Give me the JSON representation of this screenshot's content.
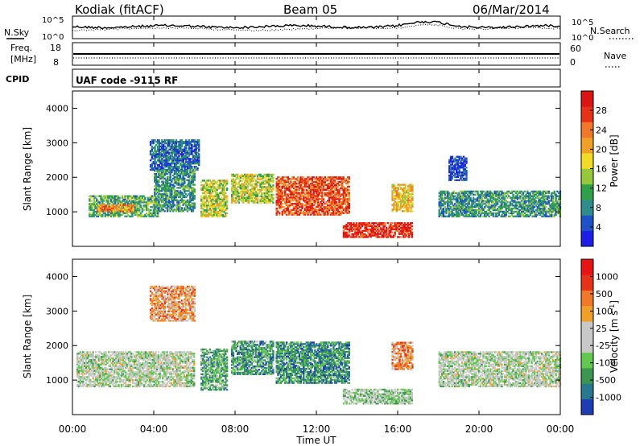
{
  "header": {
    "station": "Kodiak (fitACF)",
    "beam": "Beam 05",
    "date": "06/Mar/2014",
    "nsky_label": "N.Sky",
    "nsearch_label": "N.Search",
    "freq_label": "Freq.",
    "freq_unit": "[MHz]",
    "nave_label": "Nave",
    "cpid_label": "CPID",
    "cpid_text": "UAF code -9115 RF",
    "noise_ticks_left": [
      "10^5",
      "10^0"
    ],
    "noise_ticks_right": [
      "10^5",
      "10^0"
    ],
    "freq_ticks": [
      "18",
      "8"
    ],
    "nave_ticks": [
      "60",
      "0"
    ]
  },
  "chart_data": [
    {
      "type": "heatmap",
      "name": "power",
      "ylabel": "Slant Range [km]",
      "ylim": [
        0,
        4500
      ],
      "yticks": [
        "1000",
        "2000",
        "3000",
        "4000"
      ],
      "colorbar_label": "Power [dB]",
      "colorbar_ticks": [
        "28",
        "24",
        "20",
        "16",
        "12",
        "8",
        "4"
      ],
      "colorscale": [
        "#1e1ee6",
        "#1e50c8",
        "#2f8c8c",
        "#2fa04a",
        "#96c83c",
        "#f0dc28",
        "#f0a028",
        "#f07828",
        "#e63219",
        "#dc1414"
      ],
      "regions": [
        {
          "t0": 0.8,
          "t1": 4.2,
          "r0": 850,
          "r1": 1450,
          "level": 0.35
        },
        {
          "t0": 1.2,
          "t1": 3.0,
          "r0": 1000,
          "r1": 1200,
          "level": 0.7
        },
        {
          "t0": 3.8,
          "t1": 6.2,
          "r0": 2200,
          "r1": 3100,
          "level": 0.2
        },
        {
          "t0": 4.0,
          "t1": 6.0,
          "r0": 1000,
          "r1": 2200,
          "level": 0.3
        },
        {
          "t0": 6.3,
          "t1": 7.6,
          "r0": 850,
          "r1": 1900,
          "level": 0.5
        },
        {
          "t0": 7.8,
          "t1": 9.9,
          "r0": 1250,
          "r1": 2100,
          "level": 0.5
        },
        {
          "t0": 10.0,
          "t1": 13.6,
          "r0": 900,
          "r1": 2000,
          "level": 0.82
        },
        {
          "t0": 13.3,
          "t1": 16.7,
          "r0": 250,
          "r1": 700,
          "level": 0.9
        },
        {
          "t0": 15.7,
          "t1": 16.7,
          "r0": 1000,
          "r1": 1800,
          "level": 0.6
        },
        {
          "t0": 18.0,
          "t1": 24.0,
          "r0": 850,
          "r1": 1600,
          "level": 0.3
        },
        {
          "t0": 18.5,
          "t1": 19.4,
          "r0": 1900,
          "r1": 2600,
          "level": 0.12
        }
      ]
    },
    {
      "type": "heatmap",
      "name": "velocity",
      "ylabel": "Slant Range [km]",
      "ylim": [
        0,
        4500
      ],
      "yticks": [
        "1000",
        "2000",
        "3000",
        "4000"
      ],
      "xlabel": "Time UT",
      "xticks": [
        "00:00",
        "04:00",
        "08:00",
        "12:00",
        "16:00",
        "20:00",
        "00:00"
      ],
      "colorbar_label": "Velocity [m s^-1]",
      "colorbar_ticks": [
        "1000",
        "500",
        "100",
        "25",
        "-25",
        "-100",
        "-500",
        "-1000"
      ],
      "colorscale": [
        "#1e3cb4",
        "#287890",
        "#3c9650",
        "#64c850",
        "#c8c8c8",
        "#c8c8c8",
        "#f0a028",
        "#f07828",
        "#e63219",
        "#e61414"
      ],
      "regions": [
        {
          "t0": 0.2,
          "t1": 6.0,
          "r0": 800,
          "r1": 1800,
          "level": 0.45
        },
        {
          "t0": 3.8,
          "t1": 6.0,
          "r0": 2700,
          "r1": 3700,
          "level": 0.68
        },
        {
          "t0": 6.3,
          "t1": 7.6,
          "r0": 700,
          "r1": 1900,
          "level": 0.3
        },
        {
          "t0": 7.8,
          "t1": 9.9,
          "r0": 1150,
          "r1": 2100,
          "level": 0.25
        },
        {
          "t0": 10.0,
          "t1": 13.6,
          "r0": 900,
          "r1": 2100,
          "level": 0.22
        },
        {
          "t0": 13.3,
          "t1": 16.7,
          "r0": 300,
          "r1": 750,
          "level": 0.4
        },
        {
          "t0": 15.7,
          "t1": 16.7,
          "r0": 1300,
          "r1": 2100,
          "level": 0.7
        },
        {
          "t0": 18.0,
          "t1": 24.0,
          "r0": 800,
          "r1": 1800,
          "level": 0.45
        }
      ]
    }
  ],
  "colors": {
    "frame": "#000000",
    "bg": "#ffffff"
  }
}
